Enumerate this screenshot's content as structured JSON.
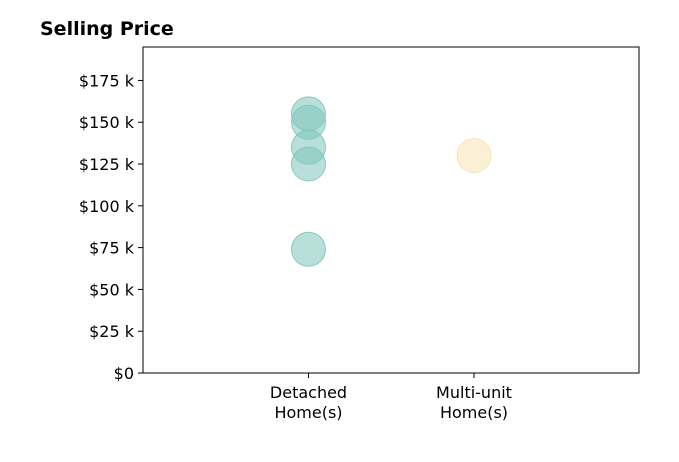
{
  "chart_data": {
    "type": "scatter",
    "title": "Selling Price",
    "xlabel": "",
    "ylabel": "",
    "categories": [
      [
        "Detached",
        "Home(s)"
      ],
      [
        "Multi-unit",
        "Home(s)"
      ]
    ],
    "ylim": [
      0,
      195000
    ],
    "y_ticks": [
      {
        "value": 0,
        "label": "$0"
      },
      {
        "value": 25000,
        "label": "$25 k"
      },
      {
        "value": 50000,
        "label": "$50 k"
      },
      {
        "value": 75000,
        "label": "$75 k"
      },
      {
        "value": 100000,
        "label": "$100 k"
      },
      {
        "value": 125000,
        "label": "$125 k"
      },
      {
        "value": 150000,
        "label": "$150 k"
      },
      {
        "value": 175000,
        "label": "$175 k"
      }
    ],
    "grid": false,
    "series": [
      {
        "category": 0,
        "values": [
          155000,
          150000,
          135000,
          125000,
          74000
        ],
        "color": "#80c4bb"
      },
      {
        "category": 1,
        "values": [
          130000
        ],
        "color": "#f7e1b3"
      }
    ]
  }
}
